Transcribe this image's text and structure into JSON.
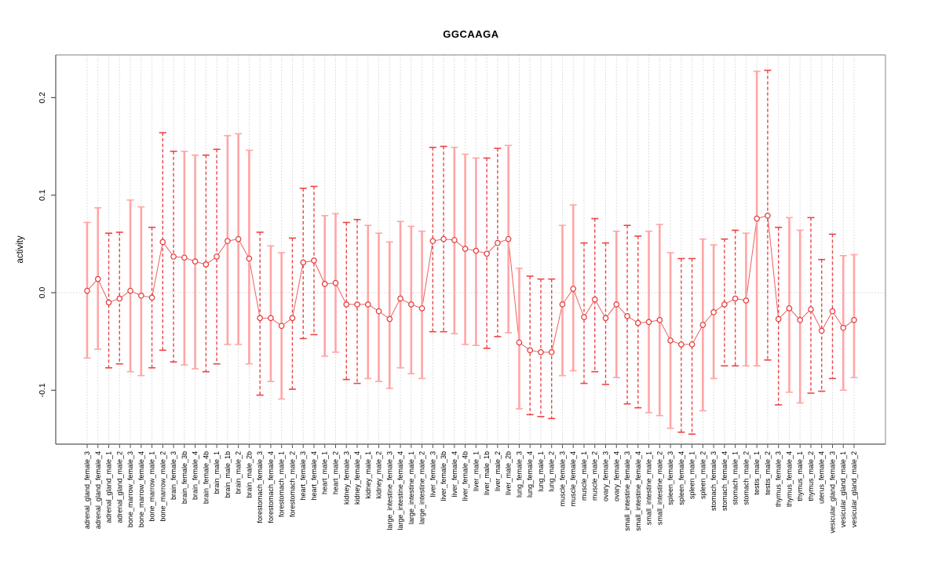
{
  "title": "GGCAAGA",
  "axes": {
    "y_label": "activity",
    "y_ticks": [
      "0.2",
      "0.1",
      "0.0",
      "-0.1"
    ]
  },
  "chart_data": {
    "type": "scatter",
    "subtype": "point-estimates-with-error-bars",
    "title": "GGCAAGA",
    "xlabel": "",
    "ylabel": "activity",
    "ylim": [
      -0.155,
      0.244
    ],
    "yticks": [
      0.2,
      0.1,
      0.0,
      -0.1
    ],
    "grid": "vertical-dotted-per-category",
    "zero_reference_line": true,
    "legend": "none",
    "categories": [
      "adrenal_gland_female_3",
      "adrenal_gland_female_4",
      "adrenal_gland_male_1",
      "adrenal_gland_male_2",
      "bone_marrow_female_3",
      "bone_marrow_female_4",
      "bone_marrow_male_1",
      "bone_marrow_male_2",
      "brain_female_3",
      "brain_female_3b",
      "brain_female_4",
      "brain_female_4b",
      "brain_male_1",
      "brain_male_1b",
      "brain_male_2",
      "brain_male_2b",
      "forestomach_female_3",
      "forestomach_female_4",
      "forestomach_male_1",
      "forestomach_male_2",
      "heart_female_3",
      "heart_female_4",
      "heart_male_1",
      "heart_male_2",
      "kidney_female_3",
      "kidney_female_4",
      "kidney_male_1",
      "kidney_male_2",
      "large_intestine_female_3",
      "large_intestine_female_4",
      "large_intestine_male_1",
      "large_intestine_male_2",
      "liver_female_3",
      "liver_female_3b",
      "liver_female_4",
      "liver_female_4b",
      "liver_male_1",
      "liver_male_1b",
      "liver_male_2",
      "liver_male_2b",
      "lung_female_3",
      "lung_female_4",
      "lung_male_1",
      "lung_male_2",
      "muscle_female_3",
      "muscle_female_4",
      "muscle_male_1",
      "muscle_male_2",
      "ovary_female_3",
      "ovary_female_4",
      "small_intestine_female_3",
      "small_intestine_female_4",
      "small_intestine_male_1",
      "small_intestine_male_2",
      "spleen_female_3",
      "spleen_female_4",
      "spleen_male_1",
      "spleen_male_2",
      "stomach_female_3",
      "stomach_female_4",
      "stomach_male_1",
      "stomach_male_2",
      "testis_male_1",
      "testis_male_2",
      "thymus_female_3",
      "thymus_female_4",
      "thymus_male_1",
      "thymus_male_2",
      "uterus_female_4",
      "vesicular_gland_female_3",
      "vesicular_gland_male_1",
      "vesicular_gland_male_2"
    ],
    "series": [
      {
        "name": "activity",
        "values": [
          0.002,
          0.014,
          -0.01,
          -0.006,
          0.002,
          -0.003,
          -0.005,
          0.052,
          0.037,
          0.036,
          0.032,
          0.029,
          0.037,
          0.053,
          0.055,
          0.035,
          -0.026,
          -0.026,
          -0.034,
          -0.026,
          0.031,
          0.033,
          0.009,
          0.01,
          -0.012,
          -0.012,
          -0.012,
          -0.019,
          -0.027,
          -0.006,
          -0.012,
          -0.016,
          0.053,
          0.055,
          0.054,
          0.045,
          0.043,
          0.04,
          0.051,
          0.055,
          -0.051,
          -0.059,
          -0.061,
          -0.061,
          -0.012,
          0.004,
          -0.025,
          -0.007,
          -0.026,
          -0.012,
          -0.024,
          -0.031,
          -0.03,
          -0.028,
          -0.049,
          -0.053,
          -0.053,
          -0.033,
          -0.02,
          -0.012,
          -0.006,
          -0.008,
          0.076,
          0.079,
          -0.027,
          -0.016,
          -0.028,
          -0.017,
          -0.039,
          -0.019,
          -0.036,
          -0.028
        ],
        "ci_high": [
          0.072,
          0.087,
          0.061,
          0.062,
          0.095,
          0.088,
          0.067,
          0.164,
          0.145,
          0.145,
          0.141,
          0.141,
          0.147,
          0.161,
          0.163,
          0.146,
          0.062,
          0.048,
          0.041,
          0.056,
          0.107,
          0.109,
          0.079,
          0.081,
          0.072,
          0.075,
          0.069,
          0.061,
          0.052,
          0.073,
          0.068,
          0.063,
          0.149,
          0.15,
          0.149,
          0.142,
          0.138,
          0.138,
          0.148,
          0.151,
          0.025,
          0.017,
          0.014,
          0.014,
          0.069,
          0.09,
          0.051,
          0.076,
          0.051,
          0.063,
          0.069,
          0.058,
          0.063,
          0.07,
          0.041,
          0.035,
          0.035,
          0.055,
          0.049,
          0.055,
          0.064,
          0.061,
          0.227,
          0.228,
          0.067,
          0.077,
          0.064,
          0.077,
          0.034,
          0.06,
          0.038,
          0.039
        ],
        "ci_low": [
          -0.067,
          -0.058,
          -0.077,
          -0.073,
          -0.081,
          -0.085,
          -0.077,
          -0.059,
          -0.071,
          -0.074,
          -0.078,
          -0.081,
          -0.073,
          -0.053,
          -0.053,
          -0.073,
          -0.105,
          -0.091,
          -0.109,
          -0.099,
          -0.047,
          -0.043,
          -0.065,
          -0.061,
          -0.089,
          -0.093,
          -0.088,
          -0.091,
          -0.098,
          -0.077,
          -0.083,
          -0.088,
          -0.04,
          -0.04,
          -0.042,
          -0.053,
          -0.054,
          -0.057,
          -0.045,
          -0.041,
          -0.119,
          -0.125,
          -0.127,
          -0.129,
          -0.085,
          -0.08,
          -0.093,
          -0.081,
          -0.094,
          -0.087,
          -0.114,
          -0.118,
          -0.123,
          -0.126,
          -0.139,
          -0.143,
          -0.145,
          -0.121,
          -0.088,
          -0.075,
          -0.075,
          -0.075,
          -0.075,
          -0.069,
          -0.115,
          -0.102,
          -0.113,
          -0.103,
          -0.101,
          -0.088,
          -0.1,
          -0.087
        ],
        "bar_style": [
          "solid",
          "solid",
          "dashed",
          "dashed",
          "solid",
          "solid",
          "dashed",
          "dashed",
          "dashed",
          "solid",
          "solid",
          "dashed",
          "dashed",
          "solid",
          "solid",
          "solid",
          "dashed",
          "solid",
          "solid",
          "dashed",
          "dashed",
          "dashed",
          "solid",
          "solid",
          "dashed",
          "dashed",
          "solid",
          "solid",
          "solid",
          "solid",
          "solid",
          "solid",
          "dashed",
          "dashed",
          "solid",
          "solid",
          "solid",
          "dashed",
          "dashed",
          "solid",
          "solid",
          "dashed",
          "dashed",
          "dashed",
          "solid",
          "solid",
          "dashed",
          "dashed",
          "dashed",
          "solid",
          "dashed",
          "dashed",
          "solid",
          "solid",
          "solid",
          "dashed",
          "dashed",
          "solid",
          "solid",
          "dashed",
          "dashed",
          "solid",
          "solid",
          "dashed",
          "dashed",
          "solid",
          "solid",
          "dashed",
          "dashed",
          "dashed",
          "solid",
          "solid"
        ]
      }
    ]
  },
  "colors": {
    "point": "#e63535",
    "line": "#ee5f5f",
    "bar_solid": "#ffa5a5",
    "bar_dashed": "#ee4343",
    "grid": "#d3d3d3",
    "zero_line": "#ddd0d0",
    "box": "#999999",
    "axis": "#555555",
    "text": "#000000"
  }
}
